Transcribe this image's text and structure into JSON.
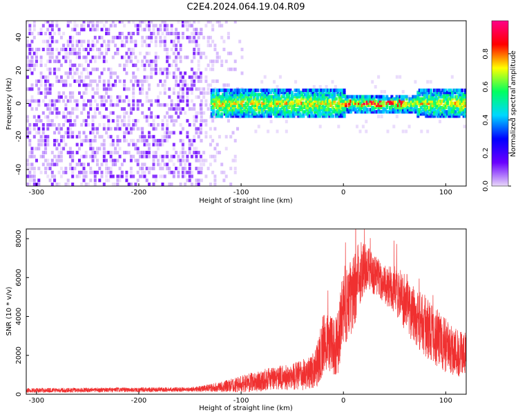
{
  "page": {
    "title": "C2E4.2024.064.19.04.R09"
  },
  "chart_data": [
    {
      "type": "heatmap",
      "xlabel": "Height of straight line (km)",
      "ylabel": "Frequency (Hz)",
      "xlim": [
        -310,
        120
      ],
      "ylim": [
        -50,
        50
      ],
      "xticks": [
        -300,
        -200,
        -100,
        0,
        100
      ],
      "yticks": [
        -40,
        -20,
        0,
        20,
        40
      ],
      "grid": false,
      "colorbar": {
        "label": "Normalized spectral amplitude",
        "range": [
          0,
          1
        ],
        "ticks": [
          "0.0",
          "0.2",
          "0.4",
          "0.6",
          "0.8"
        ],
        "colormap": [
          "#e8d8f8",
          "#6a00ff",
          "#0000ff",
          "#00d8ff",
          "#00ff60",
          "#ffff00",
          "#ff0000",
          "#ff0088"
        ]
      },
      "regions": [
        {
          "x": [
            -310,
            -140
          ],
          "freq_spread_hz": [
            -50,
            50
          ],
          "amplitude": 0.08,
          "note": "diffuse background"
        },
        {
          "x": [
            -140,
            -90
          ],
          "freq_spread_hz": [
            -50,
            50
          ],
          "amplitude": 0.03,
          "note": "fading background"
        },
        {
          "x": [
            -130,
            120
          ],
          "freq_spread_hz": [
            -8,
            8
          ],
          "center_hz": 0,
          "amplitude": [
            0.2,
            0.9
          ],
          "note": "meteor trail band"
        }
      ]
    },
    {
      "type": "line",
      "xlabel": "Height of straight line (km)",
      "ylabel": "SNR (10 * v/v)",
      "xlim": [
        -310,
        120
      ],
      "ylim": [
        0,
        8500
      ],
      "xticks": [
        -300,
        -200,
        -100,
        0,
        100
      ],
      "yticks": [
        0,
        2000,
        4000,
        6000,
        8000
      ],
      "grid": false,
      "series": [
        {
          "color": "#f03030",
          "x": [
            -310,
            -250,
            -200,
            -150,
            -130,
            -110,
            -90,
            -70,
            -50,
            -40,
            -30,
            -25,
            -20,
            -15,
            -10,
            -5,
            0,
            5,
            10,
            15,
            20,
            25,
            30,
            35,
            40,
            50,
            60,
            70,
            80,
            90,
            100,
            110,
            120
          ],
          "y": [
            200,
            220,
            230,
            250,
            320,
            450,
            600,
            800,
            900,
            1000,
            1200,
            1600,
            2500,
            2800,
            2400,
            2700,
            4600,
            4700,
            5200,
            6200,
            6600,
            6400,
            6200,
            6000,
            5600,
            5400,
            4800,
            4100,
            3500,
            3000,
            2500,
            2200,
            2000
          ],
          "spread": [
            120,
            120,
            120,
            120,
            200,
            350,
            500,
            600,
            700,
            800,
            900,
            1200,
            1600,
            1500,
            1500,
            1600,
            2000,
            2000,
            2000,
            1800,
            1400,
            1200,
            1100,
            1000,
            1000,
            1200,
            1500,
            1600,
            1600,
            1500,
            1400,
            1300,
            1200
          ]
        }
      ]
    }
  ]
}
